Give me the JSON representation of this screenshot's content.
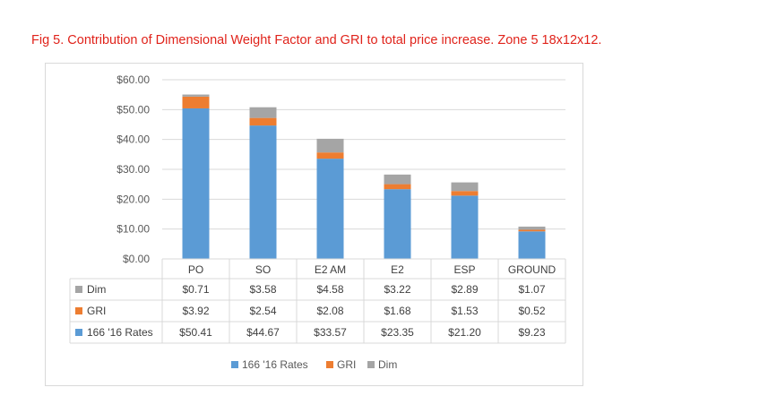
{
  "title": "Fig 5. Contribution of Dimensional Weight Factor and GRI to total price increase. Zone 5 18x12x12.",
  "chart_data": {
    "type": "bar",
    "stacked": true,
    "categories": [
      "PO",
      "SO",
      "E2 AM",
      "E2",
      "ESP",
      "GROUND"
    ],
    "series": [
      {
        "name": "166 '16 Rates",
        "values": [
          50.41,
          44.67,
          33.57,
          23.35,
          21.2,
          9.23
        ],
        "labels": [
          "$50.41",
          "$44.67",
          "$33.57",
          "$23.35",
          "$21.20",
          "$9.23"
        ],
        "color": "#5b9bd5"
      },
      {
        "name": "GRI",
        "values": [
          3.92,
          2.54,
          2.08,
          1.68,
          1.53,
          0.52
        ],
        "labels": [
          "$3.92",
          "$2.54",
          "$2.08",
          "$1.68",
          "$1.53",
          "$0.52"
        ],
        "color": "#ed7d31"
      },
      {
        "name": "Dim",
        "values": [
          0.71,
          3.58,
          4.58,
          3.22,
          2.89,
          1.07
        ],
        "labels": [
          "$0.71",
          "$3.58",
          "$4.58",
          "$3.22",
          "$2.89",
          "$1.07"
        ],
        "color": "#a5a5a5"
      }
    ],
    "ylim": [
      0,
      60
    ],
    "yticks": [
      "$0.00",
      "$10.00",
      "$20.00",
      "$30.00",
      "$40.00",
      "$50.00",
      "$60.00"
    ],
    "grid": true,
    "legend_position": "bottom",
    "data_table": true
  }
}
